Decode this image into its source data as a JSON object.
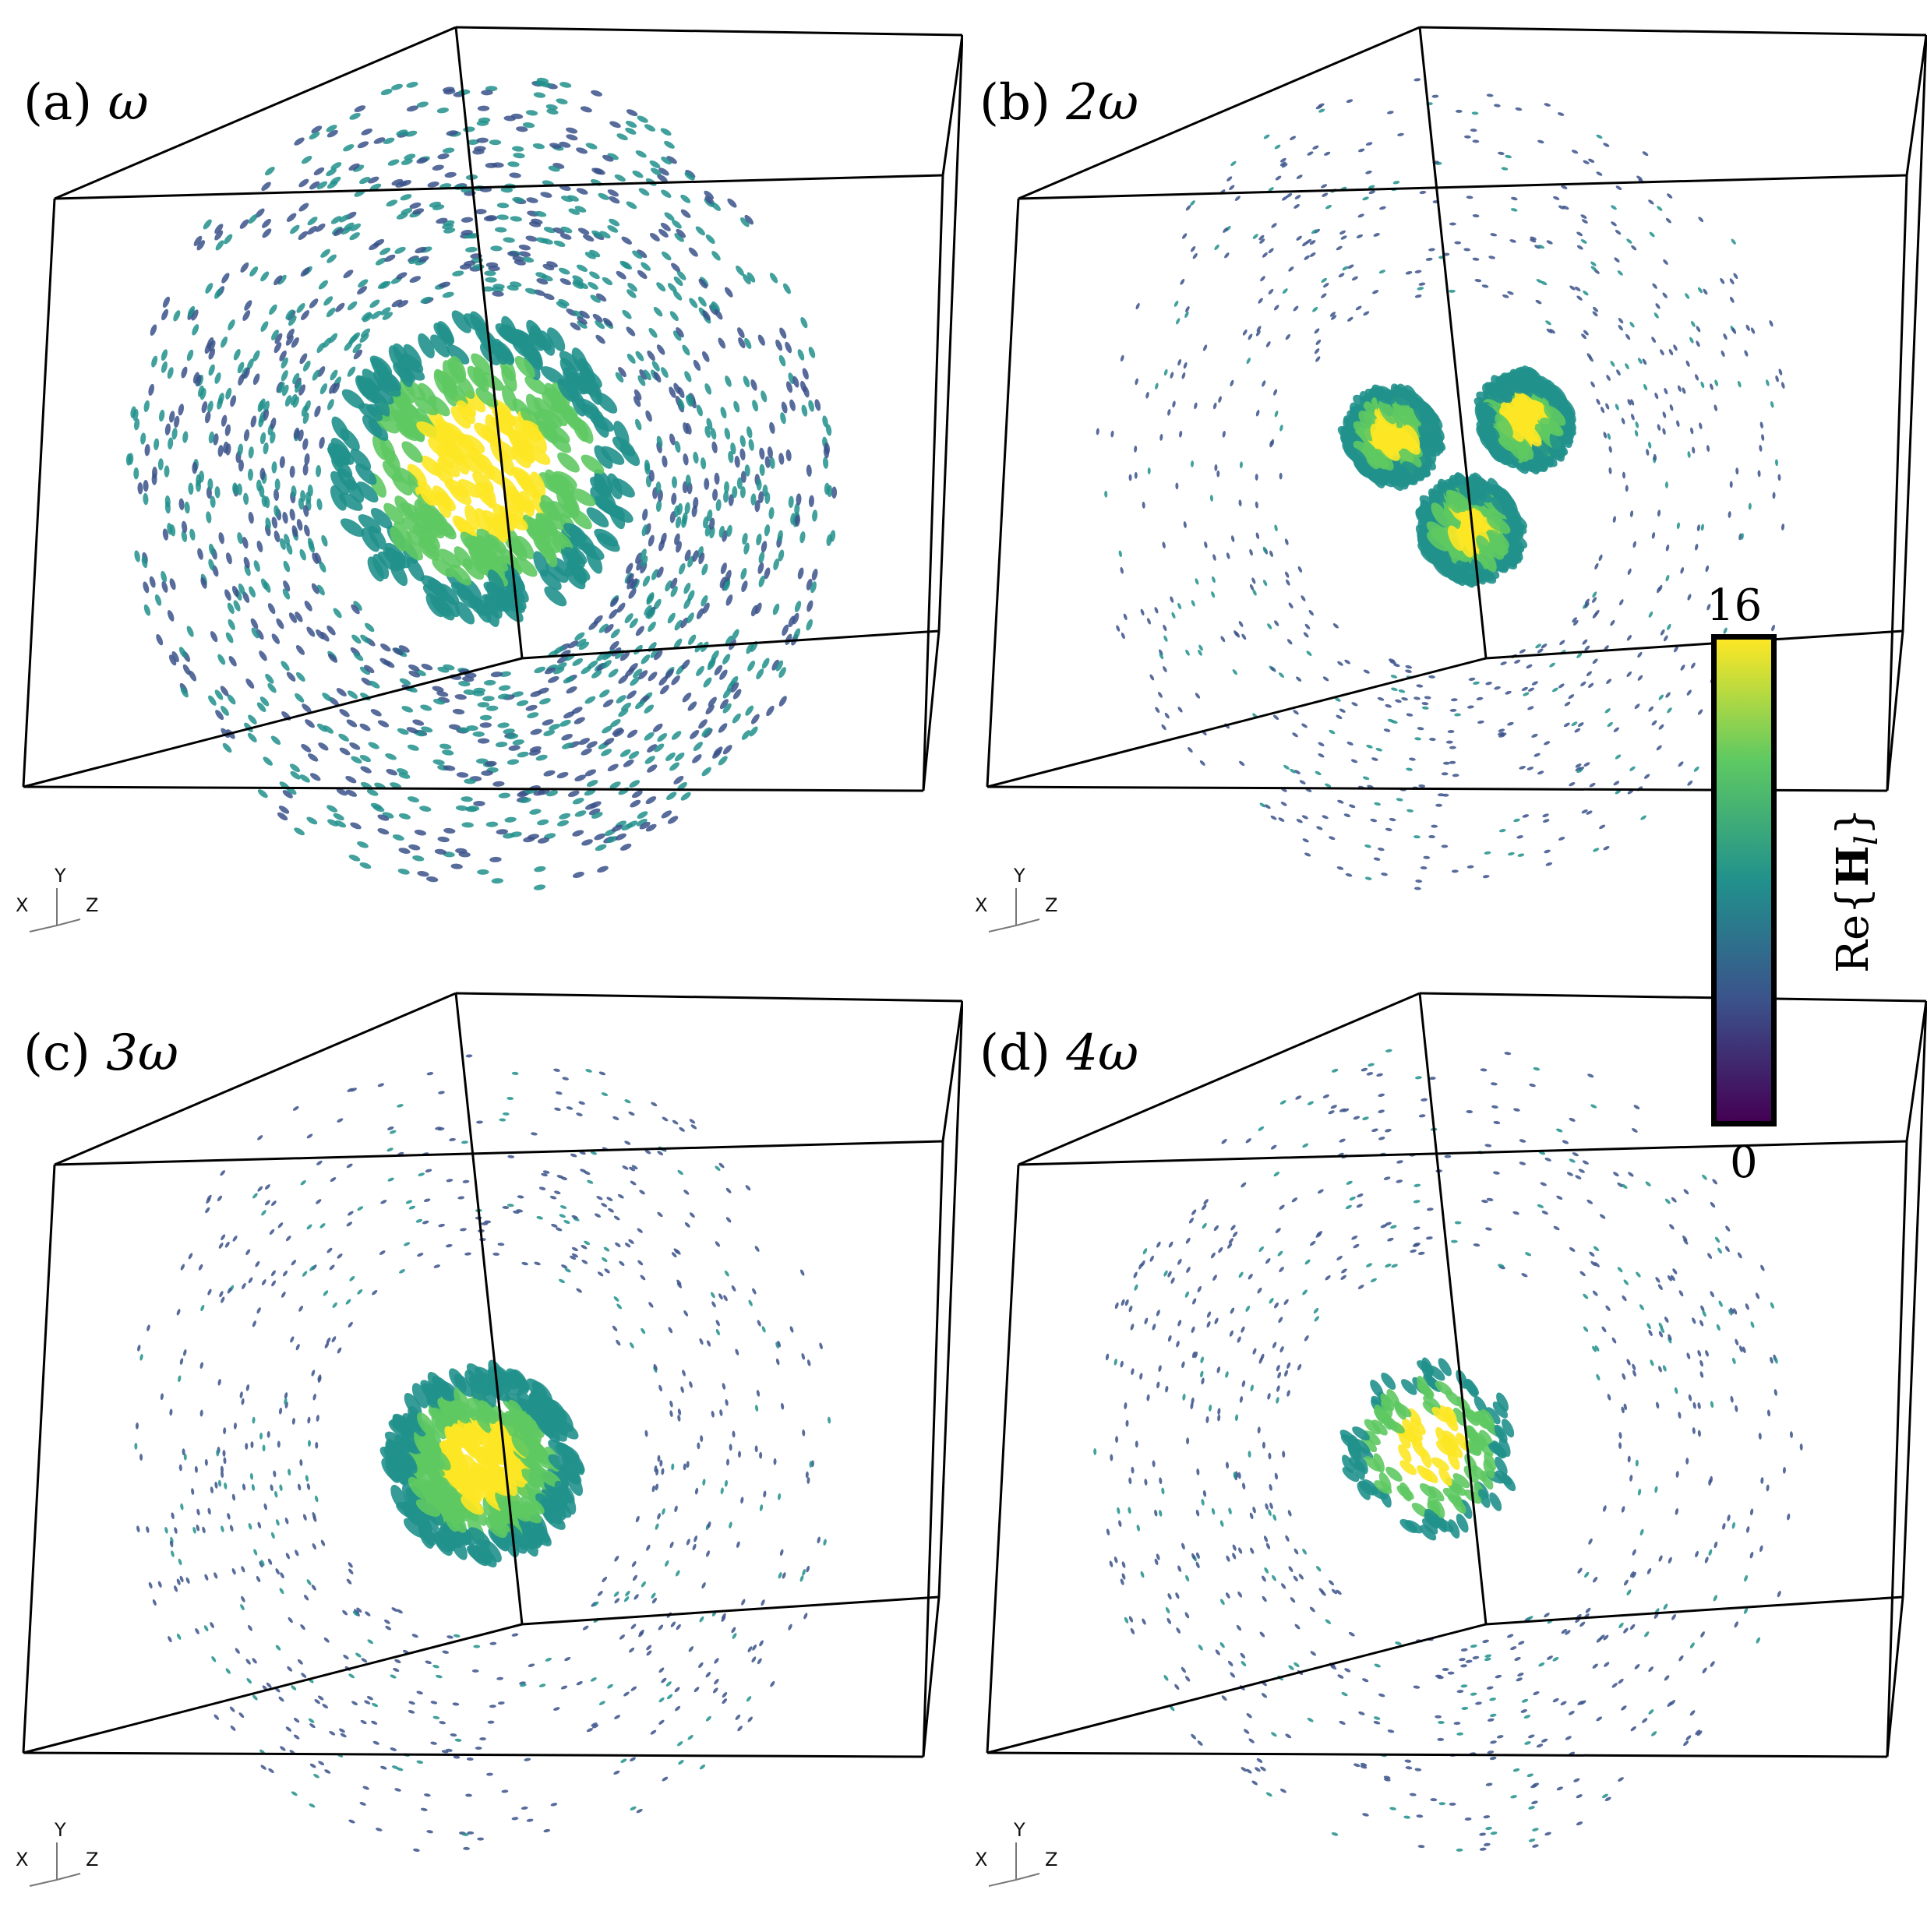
{
  "panels": [
    {
      "id": "a",
      "label_prefix": "(a)",
      "label_symbol": "ω",
      "blob": "large"
    },
    {
      "id": "b",
      "label_prefix": "(b)",
      "label_symbol": "2ω",
      "blob": "triple"
    },
    {
      "id": "c",
      "label_prefix": "(c)",
      "label_symbol": "3ω",
      "blob": "medium"
    },
    {
      "id": "d",
      "label_prefix": "(d)",
      "label_symbol": "4ω",
      "blob": "small"
    }
  ],
  "axes_triad": {
    "x": "X",
    "y": "Y",
    "z": "Z"
  },
  "colorbar": {
    "max_label": "16",
    "min_label": "0",
    "quantity_prefix": "Re{",
    "quantity_bold": "H",
    "quantity_sub": "l",
    "quantity_suffix": "}",
    "colormap": [
      "#440154",
      "#3b528b",
      "#21918c",
      "#5ec962",
      "#fde725"
    ]
  }
}
